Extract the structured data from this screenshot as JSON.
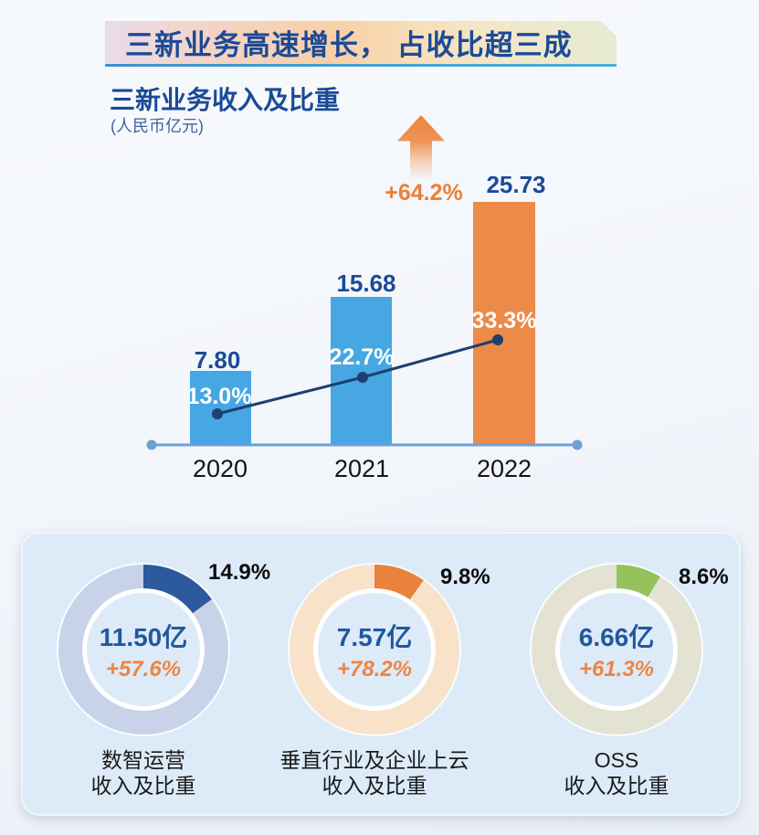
{
  "banner": {
    "title": "三新业务高速增长， 占收比超三成"
  },
  "section": {
    "title": "三新业务收入及比重",
    "unit": "(人民币亿元)"
  },
  "theme": {
    "title_blue": "#1b4a97",
    "bar_blue": "#46a7e3",
    "bar_orange": "#ec8a49",
    "accent_orange": "#ee7f35",
    "trend_navy": "#1d4070",
    "axis_blue": "#6fa0d6",
    "panel_bg": "#dcebf7"
  },
  "chart_data": [
    {
      "type": "bar",
      "title": "三新业务收入及比重",
      "unit": "人民币亿元",
      "categories": [
        "2020",
        "2021",
        "2022"
      ],
      "series": [
        {
          "name": "三新业务收入",
          "type": "bar",
          "values": [
            7.8,
            15.68,
            25.73
          ],
          "labels": [
            "7.80",
            "15.68",
            "25.73"
          ],
          "bar_colors": [
            "#46a7e3",
            "#46a7e3",
            "#ec8a49"
          ]
        },
        {
          "name": "占收比",
          "type": "line",
          "values": [
            13.0,
            22.7,
            33.3
          ],
          "labels": [
            "13.0%",
            "22.7%",
            "33.3%"
          ],
          "line_color": "#1d4070"
        }
      ],
      "growth_annotation": "+64.2%",
      "ylim": [
        0,
        27
      ],
      "grid": false,
      "legend": "none"
    },
    {
      "type": "pie",
      "title": "数智运营 收入及比重",
      "callout": "14.9%",
      "center_value": "11.50亿",
      "center_growth": "+57.6%",
      "slices": [
        {
          "label": "数智运营占收比",
          "value_pct": 14.9
        },
        {
          "label": "其余",
          "value_pct": 85.1
        }
      ],
      "active_color": "#2d5a9d",
      "track_color": "#c8d2e9",
      "caption_line1": "数智运营",
      "caption_line2": "收入及比重"
    },
    {
      "type": "pie",
      "title": "垂直行业及企业上云 收入及比重",
      "callout": "9.8%",
      "center_value": "7.57亿",
      "center_growth": "+78.2%",
      "slices": [
        {
          "label": "垂直行业及企业上云占收比",
          "value_pct": 9.8
        },
        {
          "label": "其余",
          "value_pct": 90.2
        }
      ],
      "active_color": "#e8823c",
      "track_color": "#f9e2ca",
      "caption_line1": "垂直行业及企业上云",
      "caption_line2": "收入及比重"
    },
    {
      "type": "pie",
      "title": "OSS 收入及比重",
      "callout": "8.6%",
      "center_value": "6.66亿",
      "center_growth": "+61.3%",
      "slices": [
        {
          "label": "OSS占收比",
          "value_pct": 8.6
        },
        {
          "label": "其余",
          "value_pct": 91.4
        }
      ],
      "active_color": "#94c35e",
      "track_color": "#e4e3d3",
      "caption_line1": "OSS",
      "caption_line2": "收入及比重"
    }
  ]
}
